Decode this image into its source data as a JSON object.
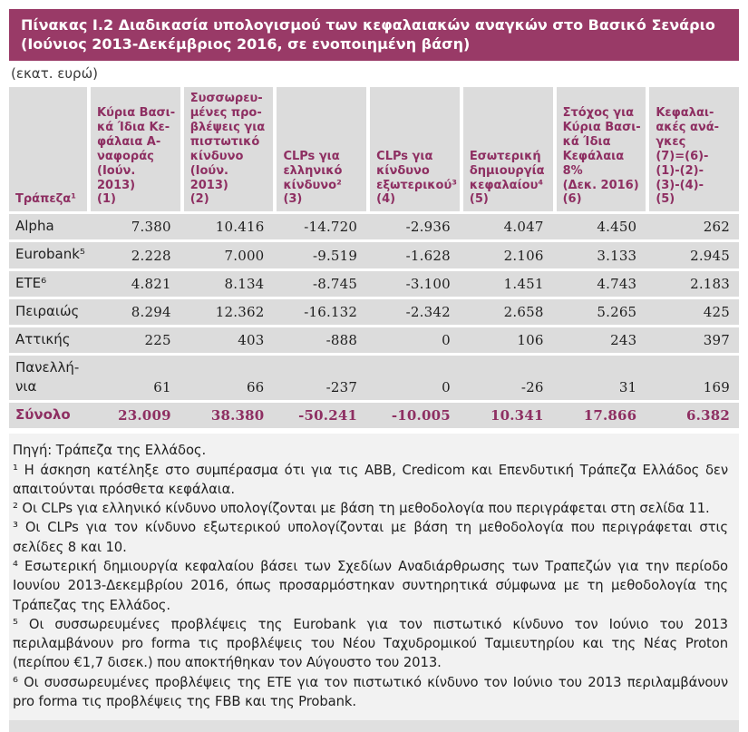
{
  "header": {
    "title": "Πίνακας I.2 Διαδικασία υπολογισμού των κεφαλαιακών αναγκών στο Βασικό Σενάριο (Ιούνιος 2013-Δεκέμβριος 2016, σε ενοποιημένη βάση)",
    "unit": "(εκατ. ευρώ)"
  },
  "colors": {
    "accent_bar": "#993A67",
    "header_text": "#8E2F62",
    "cell_background": "#DCDCDC",
    "footnote_background": "#F2F2F2"
  },
  "table": {
    "columns": [
      "Τράπεζα¹",
      "Κύρια Βασι-\nκά Ίδια Κε-\nφάλαια Α-\nναφοράς\n(Ιούν. 2013)\n(1)",
      "Συσσωρευ-\nμένες προ-\nβλέψεις για\nπιστωτικό\nκίνδυνο\n(Ιούν.\n2013)\n(2)",
      "CLPs για\nελληνικό\nκίνδυνο²\n(3)",
      "CLPs για\nκίνδυνο\nεξωτερικού³\n(4)",
      "Εσωτερική\nδημιουργία\nκεφαλαίου⁴\n(5)",
      "Στόχος για\nΚύρια Βασι-\nκά Ίδια\nΚεφάλαια\n8%\n(Δεκ. 2016)\n(6)",
      "Κεφαλαι-\nακές ανά-\nγκες\n(7)=(6)-\n(1)-(2)-\n(3)-(4)-\n(5)"
    ],
    "rows": [
      {
        "name": "Alpha",
        "values": [
          "7.380",
          "10.416",
          "-14.720",
          "-2.936",
          "4.047",
          "4.450",
          "262"
        ],
        "total": false
      },
      {
        "name": "Eurobank⁵",
        "values": [
          "2.228",
          "7.000",
          "-9.519",
          "-1.628",
          "2.106",
          "3.133",
          "2.945"
        ],
        "total": false
      },
      {
        "name": "ΕΤΕ⁶",
        "values": [
          "4.821",
          "8.134",
          "-8.745",
          "-3.100",
          "1.451",
          "4.743",
          "2.183"
        ],
        "total": false
      },
      {
        "name": "Πειραιώς",
        "values": [
          "8.294",
          "12.362",
          "-16.132",
          "-2.342",
          "2.658",
          "5.265",
          "425"
        ],
        "total": false
      },
      {
        "name": "Αττικής",
        "values": [
          "225",
          "403",
          "-888",
          "0",
          "106",
          "243",
          "397"
        ],
        "total": false
      },
      {
        "name": "Πανελλή-\nνια",
        "values": [
          "61",
          "66",
          "-237",
          "0",
          "-26",
          "31",
          "169"
        ],
        "total": false
      },
      {
        "name": "Σύνολο",
        "values": [
          "23.009",
          "38.380",
          "-50.241",
          "-10.005",
          "10.341",
          "17.866",
          "6.382"
        ],
        "total": true
      }
    ]
  },
  "footnotes": {
    "source": "Πηγή: Τράπεζα της Ελλάδος.",
    "notes": [
      "¹ Η άσκηση κατέληξε στο συμπέρασμα ότι για τις ABB, Credicom και Επενδυτική Τράπεζα Ελλάδος δεν απαιτούνται πρόσθετα κεφάλαια.",
      "² Οι CLPs για ελληνικό κίνδυνο υπολογίζονται με βάση τη μεθοδολογία που περιγράφεται στη σελίδα 11.",
      "³ Οι CLPs για τον κίνδυνο εξωτερικού υπολογίζονται με βάση τη μεθοδολογία που περιγράφεται στις σελίδες 8 και 10.",
      "⁴ Εσωτερική δημιουργία κεφαλαίου βάσει των Σχεδίων Αναδιάρθρωσης των Τραπεζών για την περίοδο Ιουνίου 2013-Δεκεμβρίου 2016, όπως προσαρμόστηκαν συντηρητικά σύμφωνα με τη μεθοδολογία της Τράπεζας της Ελλάδος.",
      "⁵ Οι συσσωρευμένες προβλέψεις της Eurobank για τον πιστωτικό κίνδυνο τον Ιούνιο του 2013 περιλαμβάνουν pro forma τις προβλέψεις του Νέου Ταχυδρομικού Ταμιευτηρίου και της Νέας Proton (περίπου €1,7 δισεκ.) που αποκτήθηκαν τον Αύγουστο του 2013.",
      "⁶ Οι συσσωρευμένες προβλέψεις της ΕΤΕ για τον πιστωτικό κίνδυνο τον Ιούνιο του 2013  περιλαμβάνουν pro forma τις προβλέψεις της FBB και της Probank."
    ]
  }
}
